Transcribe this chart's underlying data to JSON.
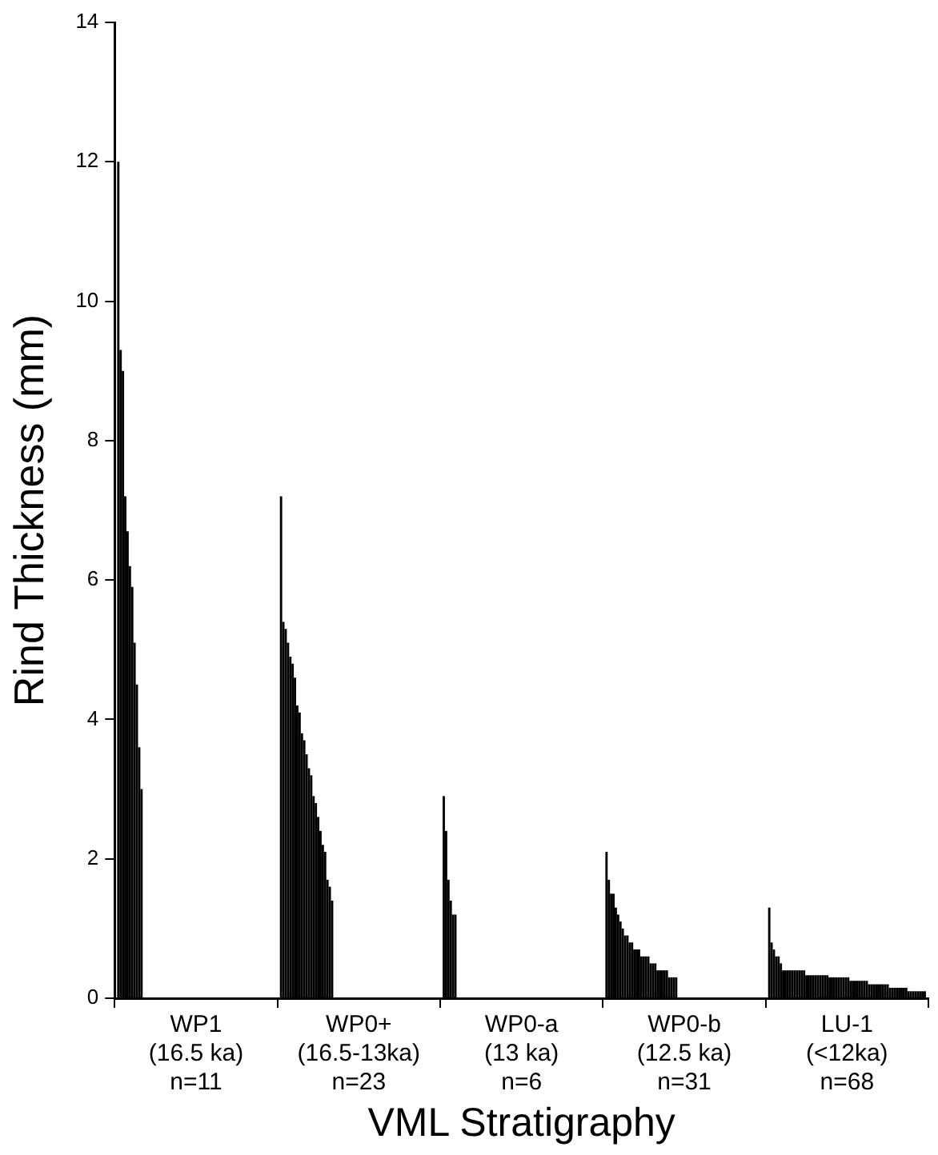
{
  "chart_data": {
    "type": "bar",
    "xlabel": "VML Stratigraphy",
    "ylabel": "Rind Thickness (mm)",
    "categories": [
      "WP1\n(16.5 ka)\nn=11",
      "WP0+\n(16.5-13ka)\nn=23",
      "WP0-a\n(13 ka)\nn=6",
      "WP0-b\n(12.5 ka)\nn=31",
      "LU-1\n(<12ka)\nn=68"
    ],
    "ylim": [
      0,
      14
    ],
    "yticks": [
      0,
      2,
      4,
      6,
      8,
      10,
      12,
      14
    ],
    "grid": false,
    "legend": false,
    "series": [
      {
        "color": "#000000",
        "values": [
          12.0,
          7.2,
          2.9,
          2.1,
          1.3
        ]
      },
      {
        "color": "#000000",
        "values": [
          9.3,
          5.4,
          2.4,
          1.7,
          0.8
        ]
      },
      {
        "color": "#000000",
        "values": [
          9.0,
          5.3,
          1.7,
          1.5,
          0.7
        ]
      },
      {
        "color": "#000000",
        "values": [
          7.2,
          5.1,
          1.4,
          1.5,
          0.6
        ]
      },
      {
        "color": "#000000",
        "values": [
          6.7,
          4.9,
          1.2,
          1.3,
          0.6
        ]
      },
      {
        "color": "#000000",
        "values": [
          6.2,
          4.8,
          1.2,
          1.2,
          0.5
        ]
      },
      {
        "color": "#000000",
        "values": [
          5.9,
          4.6,
          null,
          1.1,
          0.4
        ]
      },
      {
        "color": "#000000",
        "values": [
          5.1,
          4.2,
          null,
          1.0,
          0.4
        ]
      },
      {
        "color": "#000000",
        "values": [
          4.5,
          4.1,
          null,
          0.9,
          0.4
        ]
      },
      {
        "color": "#000000",
        "values": [
          3.6,
          3.8,
          null,
          0.9,
          0.4
        ]
      },
      {
        "color": "#000000",
        "values": [
          3.0,
          3.7,
          null,
          0.8,
          0.4
        ]
      },
      {
        "color": "#000000",
        "values": [
          null,
          3.5,
          null,
          0.8,
          0.4
        ]
      },
      {
        "color": "#000000",
        "values": [
          null,
          3.3,
          null,
          0.7,
          0.4
        ]
      },
      {
        "color": "#000000",
        "values": [
          null,
          3.2,
          null,
          0.7,
          0.4
        ]
      },
      {
        "color": "#000000",
        "values": [
          null,
          2.9,
          null,
          0.7,
          0.4
        ]
      },
      {
        "color": "#000000",
        "values": [
          null,
          2.8,
          null,
          0.6,
          0.4
        ]
      },
      {
        "color": "#000000",
        "values": [
          null,
          2.6,
          null,
          0.6,
          0.33
        ]
      },
      {
        "color": "#000000",
        "values": [
          null,
          2.4,
          null,
          0.6,
          0.33
        ]
      },
      {
        "color": "#000000",
        "values": [
          null,
          2.2,
          null,
          0.6,
          0.33
        ]
      },
      {
        "color": "#000000",
        "values": [
          null,
          2.1,
          null,
          0.5,
          0.33
        ]
      },
      {
        "color": "#000000",
        "values": [
          null,
          1.7,
          null,
          0.5,
          0.33
        ]
      },
      {
        "color": "#000000",
        "values": [
          null,
          1.6,
          null,
          0.5,
          0.33
        ]
      },
      {
        "color": "#000000",
        "values": [
          null,
          1.4,
          null,
          0.4,
          0.33
        ]
      },
      {
        "color": "#000000",
        "values": [
          null,
          null,
          null,
          0.4,
          0.33
        ]
      },
      {
        "color": "#000000",
        "values": [
          null,
          null,
          null,
          0.4,
          0.33
        ]
      },
      {
        "color": "#000000",
        "values": [
          null,
          null,
          null,
          0.4,
          0.33
        ]
      },
      {
        "color": "#000000",
        "values": [
          null,
          null,
          null,
          0.4,
          0.3
        ]
      },
      {
        "color": "#000000",
        "values": [
          null,
          null,
          null,
          0.3,
          0.3
        ]
      },
      {
        "color": "#000000",
        "values": [
          null,
          null,
          null,
          0.3,
          0.3
        ]
      },
      {
        "color": "#000000",
        "values": [
          null,
          null,
          null,
          0.3,
          0.3
        ]
      },
      {
        "color": "#000000",
        "values": [
          null,
          null,
          null,
          0.3,
          0.3
        ]
      },
      {
        "color": "#000000",
        "values": [
          null,
          null,
          null,
          null,
          0.3
        ]
      },
      {
        "color": "#000000",
        "values": [
          null,
          null,
          null,
          null,
          0.3
        ]
      },
      {
        "color": "#000000",
        "values": [
          null,
          null,
          null,
          null,
          0.3
        ]
      },
      {
        "color": "#000000",
        "values": [
          null,
          null,
          null,
          null,
          0.3
        ]
      },
      {
        "color": "#000000",
        "values": [
          null,
          null,
          null,
          null,
          0.25
        ]
      },
      {
        "color": "#000000",
        "values": [
          null,
          null,
          null,
          null,
          0.25
        ]
      },
      {
        "color": "#000000",
        "values": [
          null,
          null,
          null,
          null,
          0.25
        ]
      },
      {
        "color": "#000000",
        "values": [
          null,
          null,
          null,
          null,
          0.25
        ]
      },
      {
        "color": "#000000",
        "values": [
          null,
          null,
          null,
          null,
          0.25
        ]
      },
      {
        "color": "#000000",
        "values": [
          null,
          null,
          null,
          null,
          0.25
        ]
      },
      {
        "color": "#000000",
        "values": [
          null,
          null,
          null,
          null,
          0.25
        ]
      },
      {
        "color": "#000000",
        "values": [
          null,
          null,
          null,
          null,
          0.25
        ]
      },
      {
        "color": "#000000",
        "values": [
          null,
          null,
          null,
          null,
          0.2
        ]
      },
      {
        "color": "#000000",
        "values": [
          null,
          null,
          null,
          null,
          0.2
        ]
      },
      {
        "color": "#000000",
        "values": [
          null,
          null,
          null,
          null,
          0.2
        ]
      },
      {
        "color": "#000000",
        "values": [
          null,
          null,
          null,
          null,
          0.2
        ]
      },
      {
        "color": "#000000",
        "values": [
          null,
          null,
          null,
          null,
          0.2
        ]
      },
      {
        "color": "#000000",
        "values": [
          null,
          null,
          null,
          null,
          0.2
        ]
      },
      {
        "color": "#000000",
        "values": [
          null,
          null,
          null,
          null,
          0.2
        ]
      },
      {
        "color": "#000000",
        "values": [
          null,
          null,
          null,
          null,
          0.2
        ]
      },
      {
        "color": "#000000",
        "values": [
          null,
          null,
          null,
          null,
          0.2
        ]
      },
      {
        "color": "#000000",
        "values": [
          null,
          null,
          null,
          null,
          0.15
        ]
      },
      {
        "color": "#000000",
        "values": [
          null,
          null,
          null,
          null,
          0.15
        ]
      },
      {
        "color": "#000000",
        "values": [
          null,
          null,
          null,
          null,
          0.15
        ]
      },
      {
        "color": "#000000",
        "values": [
          null,
          null,
          null,
          null,
          0.15
        ]
      },
      {
        "color": "#000000",
        "values": [
          null,
          null,
          null,
          null,
          0.15
        ]
      },
      {
        "color": "#000000",
        "values": [
          null,
          null,
          null,
          null,
          0.15
        ]
      },
      {
        "color": "#000000",
        "values": [
          null,
          null,
          null,
          null,
          0.15
        ]
      },
      {
        "color": "#000000",
        "values": [
          null,
          null,
          null,
          null,
          0.15
        ]
      },
      {
        "color": "#000000",
        "values": [
          null,
          null,
          null,
          null,
          0.1
        ]
      },
      {
        "color": "#000000",
        "values": [
          null,
          null,
          null,
          null,
          0.1
        ]
      },
      {
        "color": "#000000",
        "values": [
          null,
          null,
          null,
          null,
          0.1
        ]
      },
      {
        "color": "#000000",
        "values": [
          null,
          null,
          null,
          null,
          0.1
        ]
      },
      {
        "color": "#000000",
        "values": [
          null,
          null,
          null,
          null,
          0.1
        ]
      },
      {
        "color": "#000000",
        "values": [
          null,
          null,
          null,
          null,
          0.1
        ]
      },
      {
        "color": "#000000",
        "values": [
          null,
          null,
          null,
          null,
          0.1
        ]
      },
      {
        "color": "#000000",
        "values": [
          null,
          null,
          null,
          null,
          0.1
        ]
      }
    ]
  }
}
